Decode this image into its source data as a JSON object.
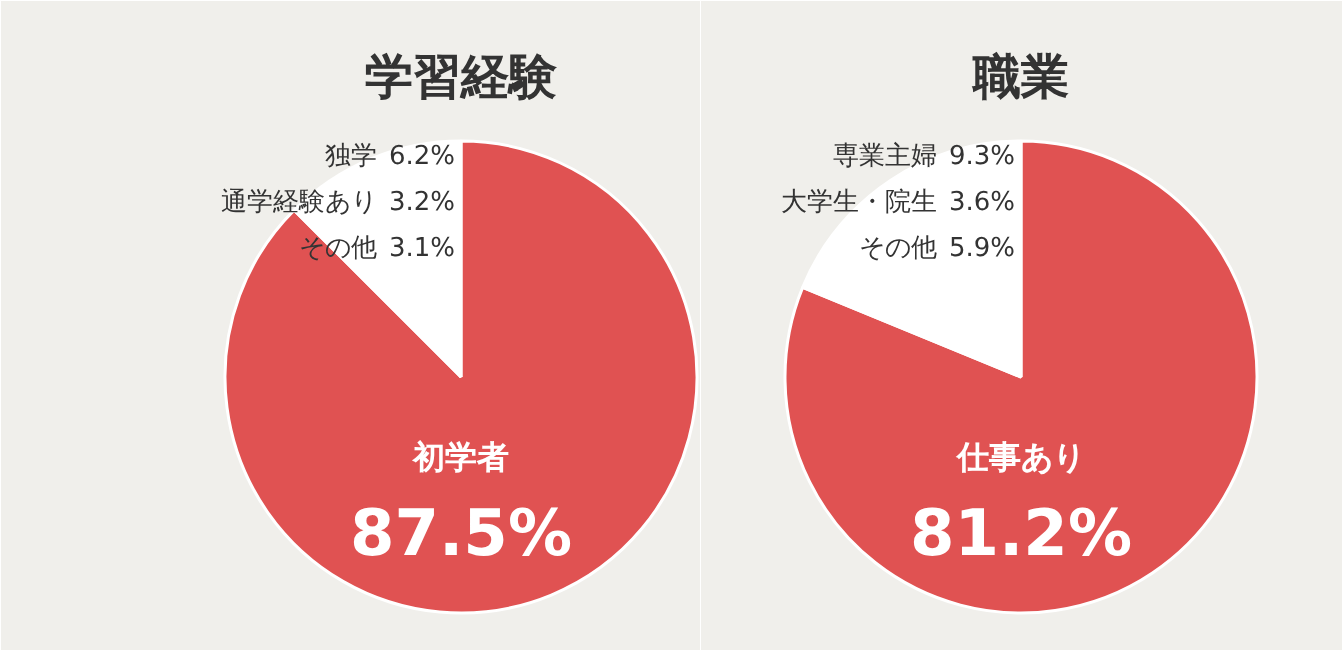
{
  "chart_data": [
    {
      "type": "pie",
      "title": "学習経験",
      "categories": [
        "初学者",
        "その他",
        "通学経験あり",
        "独学"
      ],
      "values": [
        87.5,
        3.1,
        3.2,
        6.2
      ],
      "colors": [
        "#e05252",
        "#ffffff",
        "#ffffff",
        "#ffffff"
      ],
      "value_labels": [
        "87.5%",
        "3.1%",
        "3.2%",
        "6.2%"
      ]
    },
    {
      "type": "pie",
      "title": "職業",
      "categories": [
        "仕事あり",
        "その他",
        "大学生・院生",
        "専業主婦"
      ],
      "values": [
        81.2,
        5.9,
        3.6,
        9.3
      ],
      "colors": [
        "#e05252",
        "#ffffff",
        "#ffffff",
        "#ffffff"
      ],
      "value_labels": [
        "81.2%",
        "5.9%",
        "3.6%",
        "9.3%"
      ]
    }
  ]
}
